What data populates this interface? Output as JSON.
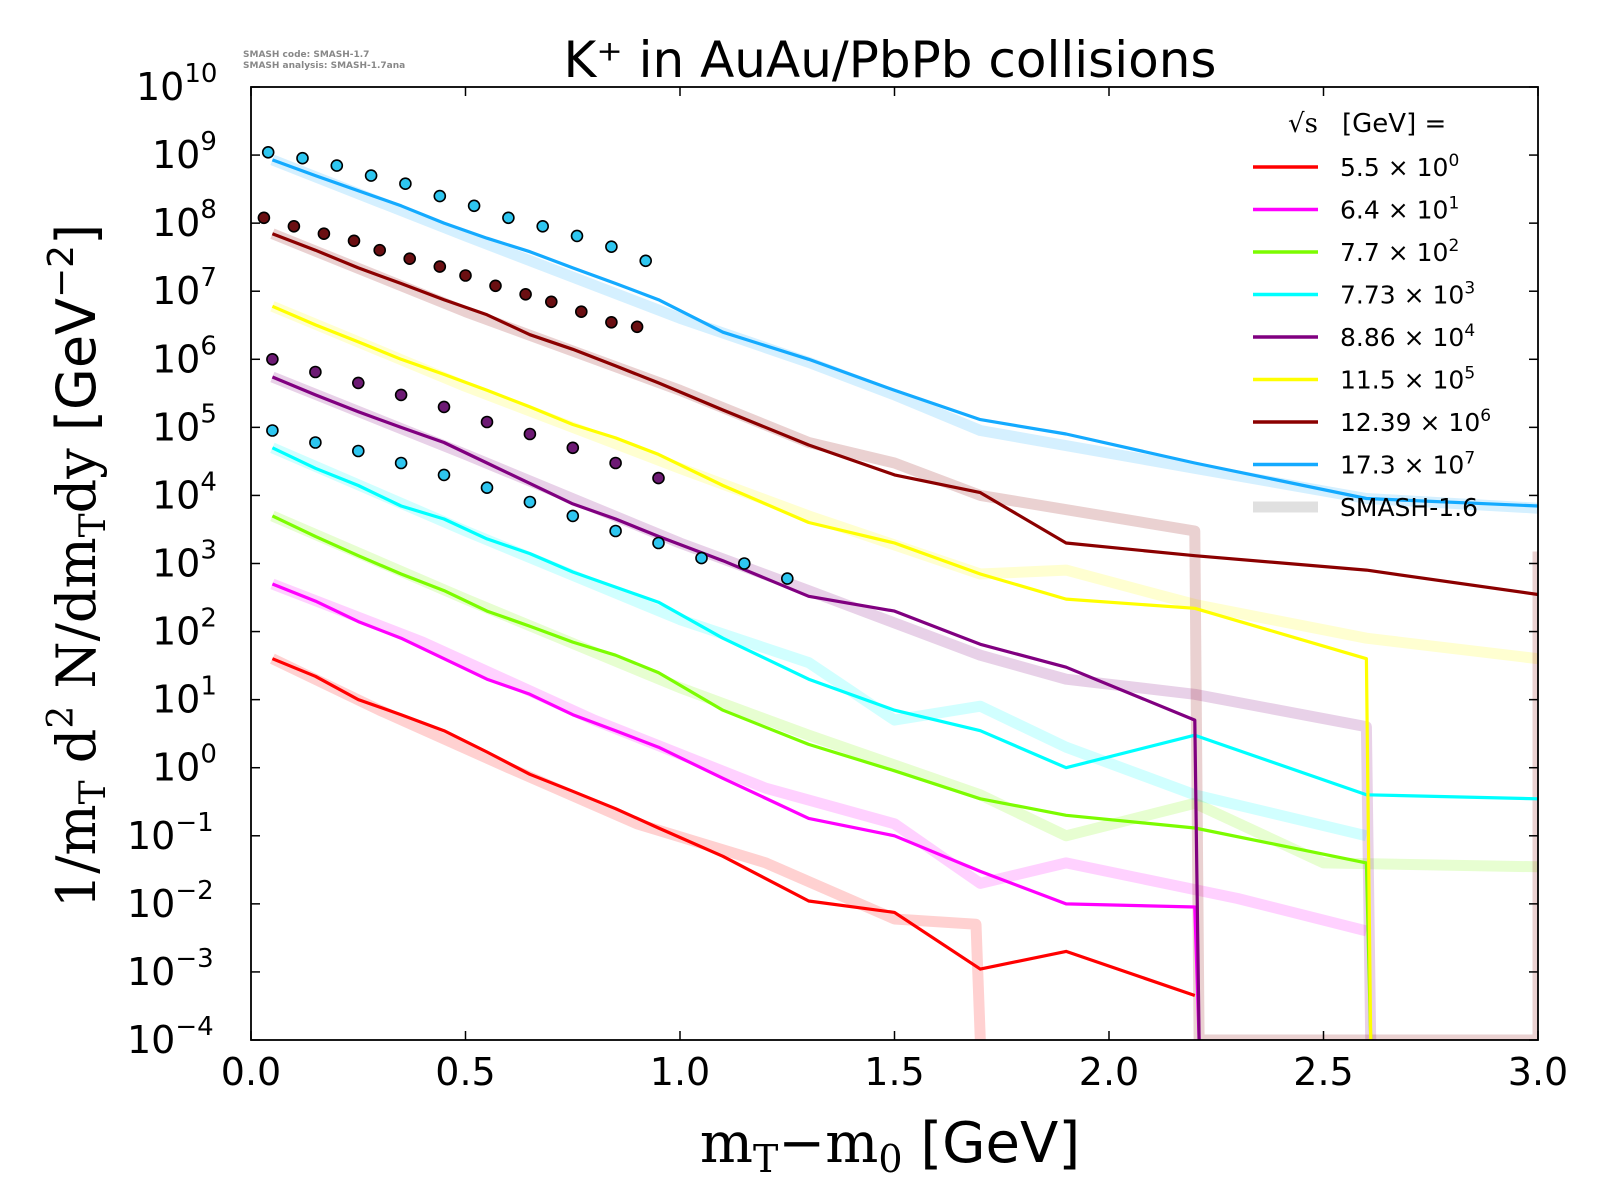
{
  "watermark": {
    "line1": "SMASH code:      SMASH-1.7",
    "line2": "SMASH analysis: SMASH-1.7ana"
  },
  "chart_data": {
    "type": "line",
    "title": "K⁺ in AuAu/PbPb collisions",
    "xlabel": "mᴛ−m₀ [GeV]",
    "xlabel_parts": {
      "m1": "m",
      "sub1": "T",
      "minus": "−m",
      "sub2": "0",
      "unit": " [GeV]"
    },
    "ylabel": "1/mᴛ d² N/dmᴛdy [GeV⁻²]",
    "ylabel_parts": {
      "a": "1/m",
      "sub1": "T",
      "b": " d",
      "sup": "2",
      "c": " N/dm",
      "sub2": "T",
      "d": "dy",
      "unit": " [GeV",
      "unit_sup": "−2",
      "close": "]"
    },
    "xlim": [
      0.0,
      3.0
    ],
    "ylim_log10": [
      -4,
      10
    ],
    "yscale": "log",
    "xticks": [
      0.0,
      0.5,
      1.0,
      1.5,
      2.0,
      2.5,
      3.0
    ],
    "xtick_labels": [
      "0.0",
      "0.5",
      "1.0",
      "1.5",
      "2.0",
      "2.5",
      "3.0"
    ],
    "ytick_exponents": [
      -4,
      -3,
      -2,
      -1,
      0,
      1,
      2,
      3,
      4,
      5,
      6,
      7,
      8,
      9,
      10
    ],
    "ytick_base": "10",
    "legend": {
      "placement": "top-right",
      "header_root": "√s",
      "header_text": "[GeV] ="
    },
    "series": [
      {
        "name": "5.5",
        "scale_label": "× 10",
        "scale_exp": "0",
        "color": "#ff0000",
        "x": [
          0.05,
          0.15,
          0.25,
          0.35,
          0.45,
          0.55,
          0.65,
          0.75,
          0.85,
          0.95,
          1.1,
          1.3,
          1.5,
          1.7,
          1.9,
          2.2
        ],
        "y": [
          40,
          22,
          10,
          6,
          3.5,
          1.7,
          0.8,
          0.45,
          0.25,
          0.13,
          0.05,
          0.011,
          0.0075,
          0.0011,
          0.002,
          0.00045
        ],
        "ref_x": [
          0.05,
          0.3,
          0.6,
          0.9,
          1.2,
          1.5,
          1.69,
          1.7
        ],
        "ref_y": [
          40,
          7,
          1.0,
          0.15,
          0.04,
          0.006,
          0.005,
          0.0001
        ]
      },
      {
        "name": "6.4",
        "scale_label": "× 10",
        "scale_exp": "1",
        "color": "#ff00ff",
        "x": [
          0.05,
          0.15,
          0.25,
          0.35,
          0.45,
          0.55,
          0.65,
          0.75,
          0.85,
          0.95,
          1.1,
          1.3,
          1.5,
          1.7,
          1.9,
          2.2,
          2.21
        ],
        "y": [
          500,
          280,
          140,
          80,
          40,
          20,
          12,
          6,
          3.5,
          2,
          0.7,
          0.18,
          0.1,
          0.03,
          0.01,
          0.009,
          0.0001
        ],
        "ref_x": [
          0.05,
          0.4,
          0.8,
          1.2,
          1.5,
          1.7,
          1.9,
          2.3,
          2.6
        ],
        "ref_y": [
          500,
          70,
          5,
          0.5,
          0.15,
          0.02,
          0.04,
          0.012,
          0.004
        ]
      },
      {
        "name": "7.7",
        "scale_label": "× 10",
        "scale_exp": "2",
        "color": "#7cfc00",
        "x": [
          0.05,
          0.15,
          0.25,
          0.35,
          0.45,
          0.55,
          0.65,
          0.75,
          0.85,
          0.95,
          1.1,
          1.3,
          1.5,
          1.7,
          1.9,
          2.2,
          2.6,
          2.61
        ],
        "y": [
          5000,
          2500,
          1300,
          700,
          400,
          200,
          120,
          70,
          45,
          25,
          7,
          2.2,
          0.9,
          0.35,
          0.2,
          0.13,
          0.04,
          0.0001
        ],
        "ref_x": [
          0.05,
          0.5,
          1.0,
          1.3,
          1.7,
          1.9,
          2.2,
          2.5,
          3.0
        ],
        "ref_y": [
          5000,
          300,
          15,
          3,
          0.4,
          0.1,
          0.3,
          0.04,
          0.035
        ]
      },
      {
        "name": "7.73",
        "scale_label": "× 10",
        "scale_exp": "3",
        "color": "#00ffff",
        "x": [
          0.05,
          0.15,
          0.25,
          0.35,
          0.45,
          0.55,
          0.65,
          0.75,
          0.85,
          0.95,
          1.1,
          1.3,
          1.5,
          1.7,
          1.9,
          2.2,
          2.6,
          3.0
        ],
        "y": [
          50000,
          25000,
          14000,
          7000,
          4500,
          2300,
          1400,
          750,
          450,
          270,
          80,
          20,
          7,
          3.5,
          1.0,
          3,
          0.4,
          0.35
        ],
        "ref_x": [
          0.05,
          0.5,
          1.0,
          1.3,
          1.5,
          1.7,
          1.9,
          2.2,
          2.6
        ],
        "ref_y": [
          50000,
          3000,
          150,
          35,
          5,
          8,
          2,
          0.4,
          0.1
        ]
      },
      {
        "name": "8.86",
        "scale_label": "× 10",
        "scale_exp": "4",
        "color": "#800080",
        "x": [
          0.05,
          0.15,
          0.25,
          0.35,
          0.45,
          0.55,
          0.65,
          0.75,
          0.85,
          0.95,
          1.1,
          1.3,
          1.5,
          1.7,
          1.9,
          2.2,
          2.21
        ],
        "y": [
          550000,
          300000,
          170000,
          100000,
          60000,
          30000,
          15000,
          7500,
          4500,
          2500,
          1100,
          330,
          200,
          65,
          30,
          5,
          0.0001
        ],
        "ref_x": [
          0.05,
          0.5,
          1.0,
          1.3,
          1.7,
          1.9,
          2.2,
          2.6,
          2.61
        ],
        "ref_y": [
          550000,
          40000,
          2000,
          400,
          45,
          20,
          12,
          4,
          0.0001
        ]
      },
      {
        "name": "11.5",
        "scale_label": "× 10",
        "scale_exp": "5",
        "color": "#ffff00",
        "x": [
          0.05,
          0.15,
          0.25,
          0.35,
          0.45,
          0.55,
          0.65,
          0.75,
          0.85,
          0.95,
          1.1,
          1.3,
          1.5,
          1.7,
          1.9,
          2.2,
          2.6,
          2.61
        ],
        "y": [
          6000000,
          3200000,
          1800000,
          1000000,
          600000,
          350000,
          200000,
          110000,
          70000,
          40000,
          14000,
          4000,
          2000,
          700,
          300,
          220,
          40,
          0.0001
        ],
        "ref_x": [
          0.05,
          0.5,
          1.0,
          1.3,
          1.7,
          1.9,
          2.2,
          2.6,
          3.0
        ],
        "ref_y": [
          6000000,
          400000,
          25000,
          5000,
          700,
          800,
          250,
          80,
          40
        ]
      },
      {
        "name": "12.39",
        "scale_label": "× 10",
        "scale_exp": "6",
        "color": "#8b0000",
        "x": [
          0.05,
          0.15,
          0.25,
          0.35,
          0.45,
          0.55,
          0.65,
          0.75,
          0.85,
          0.95,
          1.1,
          1.3,
          1.5,
          1.7,
          1.9,
          2.2,
          2.6,
          3.0
        ],
        "y": [
          70000000,
          40000000,
          22000000,
          13000000,
          7500000,
          4500000,
          2300000,
          1400000,
          800000,
          450000,
          180000,
          55000,
          20000,
          11000,
          2000,
          1300,
          800,
          350
        ],
        "ref_x": [
          0.05,
          0.5,
          1.0,
          1.3,
          1.5,
          1.7,
          2.2,
          2.21,
          3.0,
          3.0
        ],
        "ref_y": [
          70000000,
          5000000,
          350000,
          60000,
          30000,
          10000,
          3000,
          0.0001,
          0.0001,
          1500
        ]
      },
      {
        "name": "17.3",
        "scale_label": "× 10",
        "scale_exp": "7",
        "color": "#14aaff",
        "x": [
          0.05,
          0.15,
          0.25,
          0.35,
          0.45,
          0.55,
          0.65,
          0.75,
          0.85,
          0.95,
          1.1,
          1.3,
          1.5,
          1.7,
          1.9,
          2.2,
          2.6,
          3.0
        ],
        "y": [
          850000000,
          500000000,
          300000000,
          180000000,
          100000000,
          60000000,
          38000000,
          22000000,
          13000000,
          7500000,
          2500000,
          1000000,
          350000,
          130000,
          80000,
          30000,
          9000,
          7000
        ],
        "ref_x": [
          0.05,
          0.5,
          1.0,
          1.3,
          1.5,
          1.7,
          2.2,
          2.6,
          3.0
        ],
        "ref_y": [
          850000000,
          65000000,
          4000000,
          900000,
          300000,
          90000,
          25000,
          9000,
          6500
        ]
      }
    ],
    "reference_label": "SMASH-1.6",
    "reference_color": "#e0e0e0",
    "data_points": [
      {
        "color": "#2ec6f0",
        "x": [
          0.04,
          0.12,
          0.2,
          0.28,
          0.36,
          0.44,
          0.52,
          0.6,
          0.68,
          0.76,
          0.84,
          0.92
        ],
        "y": [
          1100000000,
          900000000,
          700000000,
          500000000,
          380000000,
          250000000,
          180000000,
          120000000,
          90000000,
          65000000,
          45000000,
          28000000
        ]
      },
      {
        "color": "#6b0f12",
        "x": [
          0.03,
          0.1,
          0.17,
          0.24,
          0.3,
          0.37,
          0.44,
          0.5,
          0.57,
          0.64,
          0.7,
          0.77,
          0.84,
          0.9
        ],
        "y": [
          120000000,
          90000000,
          70000000,
          55000000,
          40000000,
          30000000,
          23000000,
          17000000,
          12000000,
          9000000,
          7000000,
          5000000,
          3500000,
          3000000
        ]
      },
      {
        "color": "#6d1a74",
        "x": [
          0.05,
          0.15,
          0.25,
          0.35,
          0.45,
          0.55,
          0.65,
          0.75,
          0.85,
          0.95
        ],
        "y": [
          1000000,
          650000,
          450000,
          300000,
          200000,
          120000,
          80000,
          50000,
          30000,
          18000
        ]
      },
      {
        "color": "#2ec6f0",
        "x": [
          0.05,
          0.15,
          0.25,
          0.35,
          0.45,
          0.55,
          0.65,
          0.75,
          0.85,
          0.95,
          1.05,
          1.15,
          1.25
        ],
        "y": [
          90000,
          60000,
          45000,
          30000,
          20000,
          13000,
          8000,
          5000,
          3000,
          2000,
          1200,
          1000,
          600
        ]
      }
    ]
  }
}
